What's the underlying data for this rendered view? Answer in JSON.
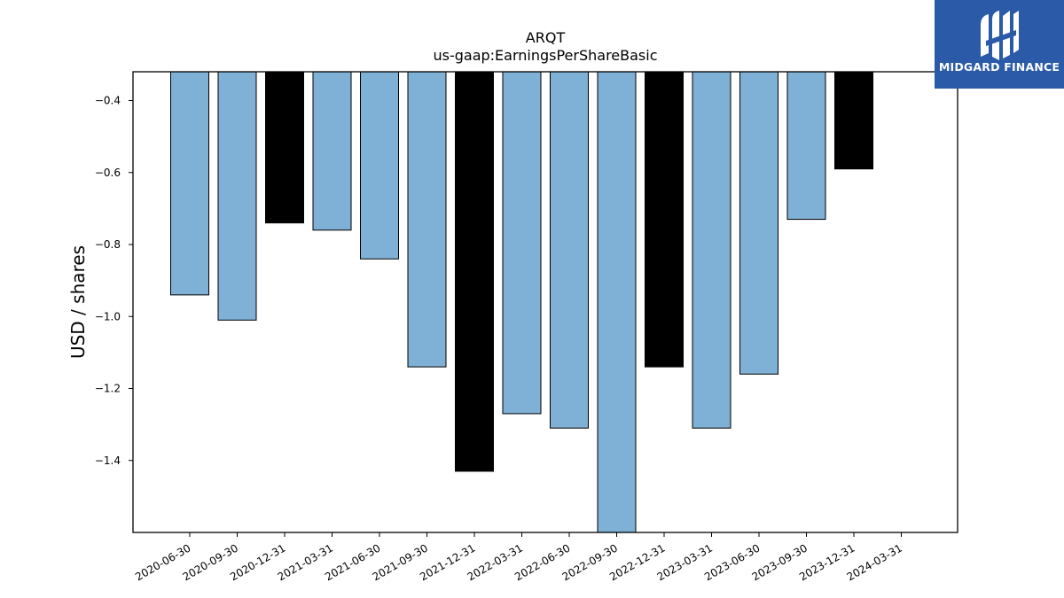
{
  "logo": {
    "text": "MIDGARD FINANCE",
    "icon": "midgard-logo-icon",
    "background": "#2b5aa8"
  },
  "chart_data": {
    "type": "bar",
    "title": "ARQT",
    "subtitle": "us-gaap:EarningsPerShareBasic",
    "xlabel": "",
    "ylabel": "USD / shares",
    "ylim": [
      -1.6,
      -0.32
    ],
    "yticks": [
      -0.4,
      -0.6,
      -0.8,
      -1.0,
      -1.2,
      -1.4
    ],
    "ytick_labels": [
      "−0.4",
      "−0.6",
      "−0.8",
      "−1.0",
      "−1.2",
      "−1.4"
    ],
    "categories": [
      "2020-06-30",
      "2020-09-30",
      "2020-12-31",
      "2021-03-31",
      "2021-06-30",
      "2021-09-30",
      "2021-12-31",
      "2022-03-31",
      "2022-06-30",
      "2022-09-30",
      "2022-12-31",
      "2023-03-31",
      "2023-06-30",
      "2023-09-30",
      "2023-12-31",
      "2024-03-31"
    ],
    "values": [
      -0.94,
      -1.01,
      -0.74,
      -0.76,
      -0.84,
      -1.14,
      -1.43,
      -1.27,
      -1.31,
      -1.6,
      -1.14,
      -1.31,
      -1.16,
      -0.73,
      -0.59,
      null
    ],
    "bar_colors": [
      "#7fb0d5",
      "#7fb0d5",
      "#000000",
      "#7fb0d5",
      "#7fb0d5",
      "#7fb0d5",
      "#000000",
      "#7fb0d5",
      "#7fb0d5",
      "#7fb0d5",
      "#000000",
      "#7fb0d5",
      "#7fb0d5",
      "#7fb0d5",
      "#000000",
      "#7fb0d5"
    ],
    "grid": false,
    "legend": "none"
  }
}
